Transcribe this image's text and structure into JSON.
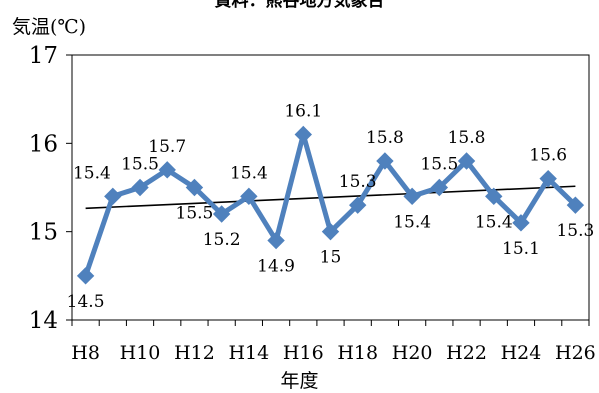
{
  "chart_data": {
    "type": "line",
    "title": "資料：熊谷地方気象台",
    "ylabel": "気温(℃)",
    "xlabel": "年度",
    "x": [
      "H8",
      "H9",
      "H10",
      "H11",
      "H12",
      "H13",
      "H14",
      "H15",
      "H16",
      "H17",
      "H18",
      "H19",
      "H20",
      "H21",
      "H22",
      "H23",
      "H24",
      "H25",
      "H26"
    ],
    "tick_labels": [
      "H8",
      "H10",
      "H12",
      "H14",
      "H16",
      "H18",
      "H20",
      "H22",
      "H24",
      "H26"
    ],
    "series": [
      {
        "values": [
          14.5,
          15.4,
          15.5,
          15.7,
          15.5,
          15.2,
          15.4,
          14.9,
          16.1,
          15.0,
          15.3,
          15.8,
          15.4,
          15.5,
          15.8,
          15.4,
          15.1,
          15.6,
          15.3
        ],
        "data_labels": [
          "14.5",
          "15.4",
          "15.5",
          "15.7",
          "15.5",
          "15.2",
          "15.4",
          "14.9",
          "16.1",
          "15",
          "15.3",
          "15.8",
          "15.4",
          "15.5",
          "15.8",
          "15.4",
          "15.1",
          "15.6",
          "15.3"
        ],
        "color": "#4f81bd"
      }
    ],
    "trendline": {
      "color": "#000000"
    },
    "ylim": [
      14,
      17
    ],
    "yticks": [
      14,
      15,
      16,
      17
    ],
    "grid": false,
    "legend": "none"
  }
}
